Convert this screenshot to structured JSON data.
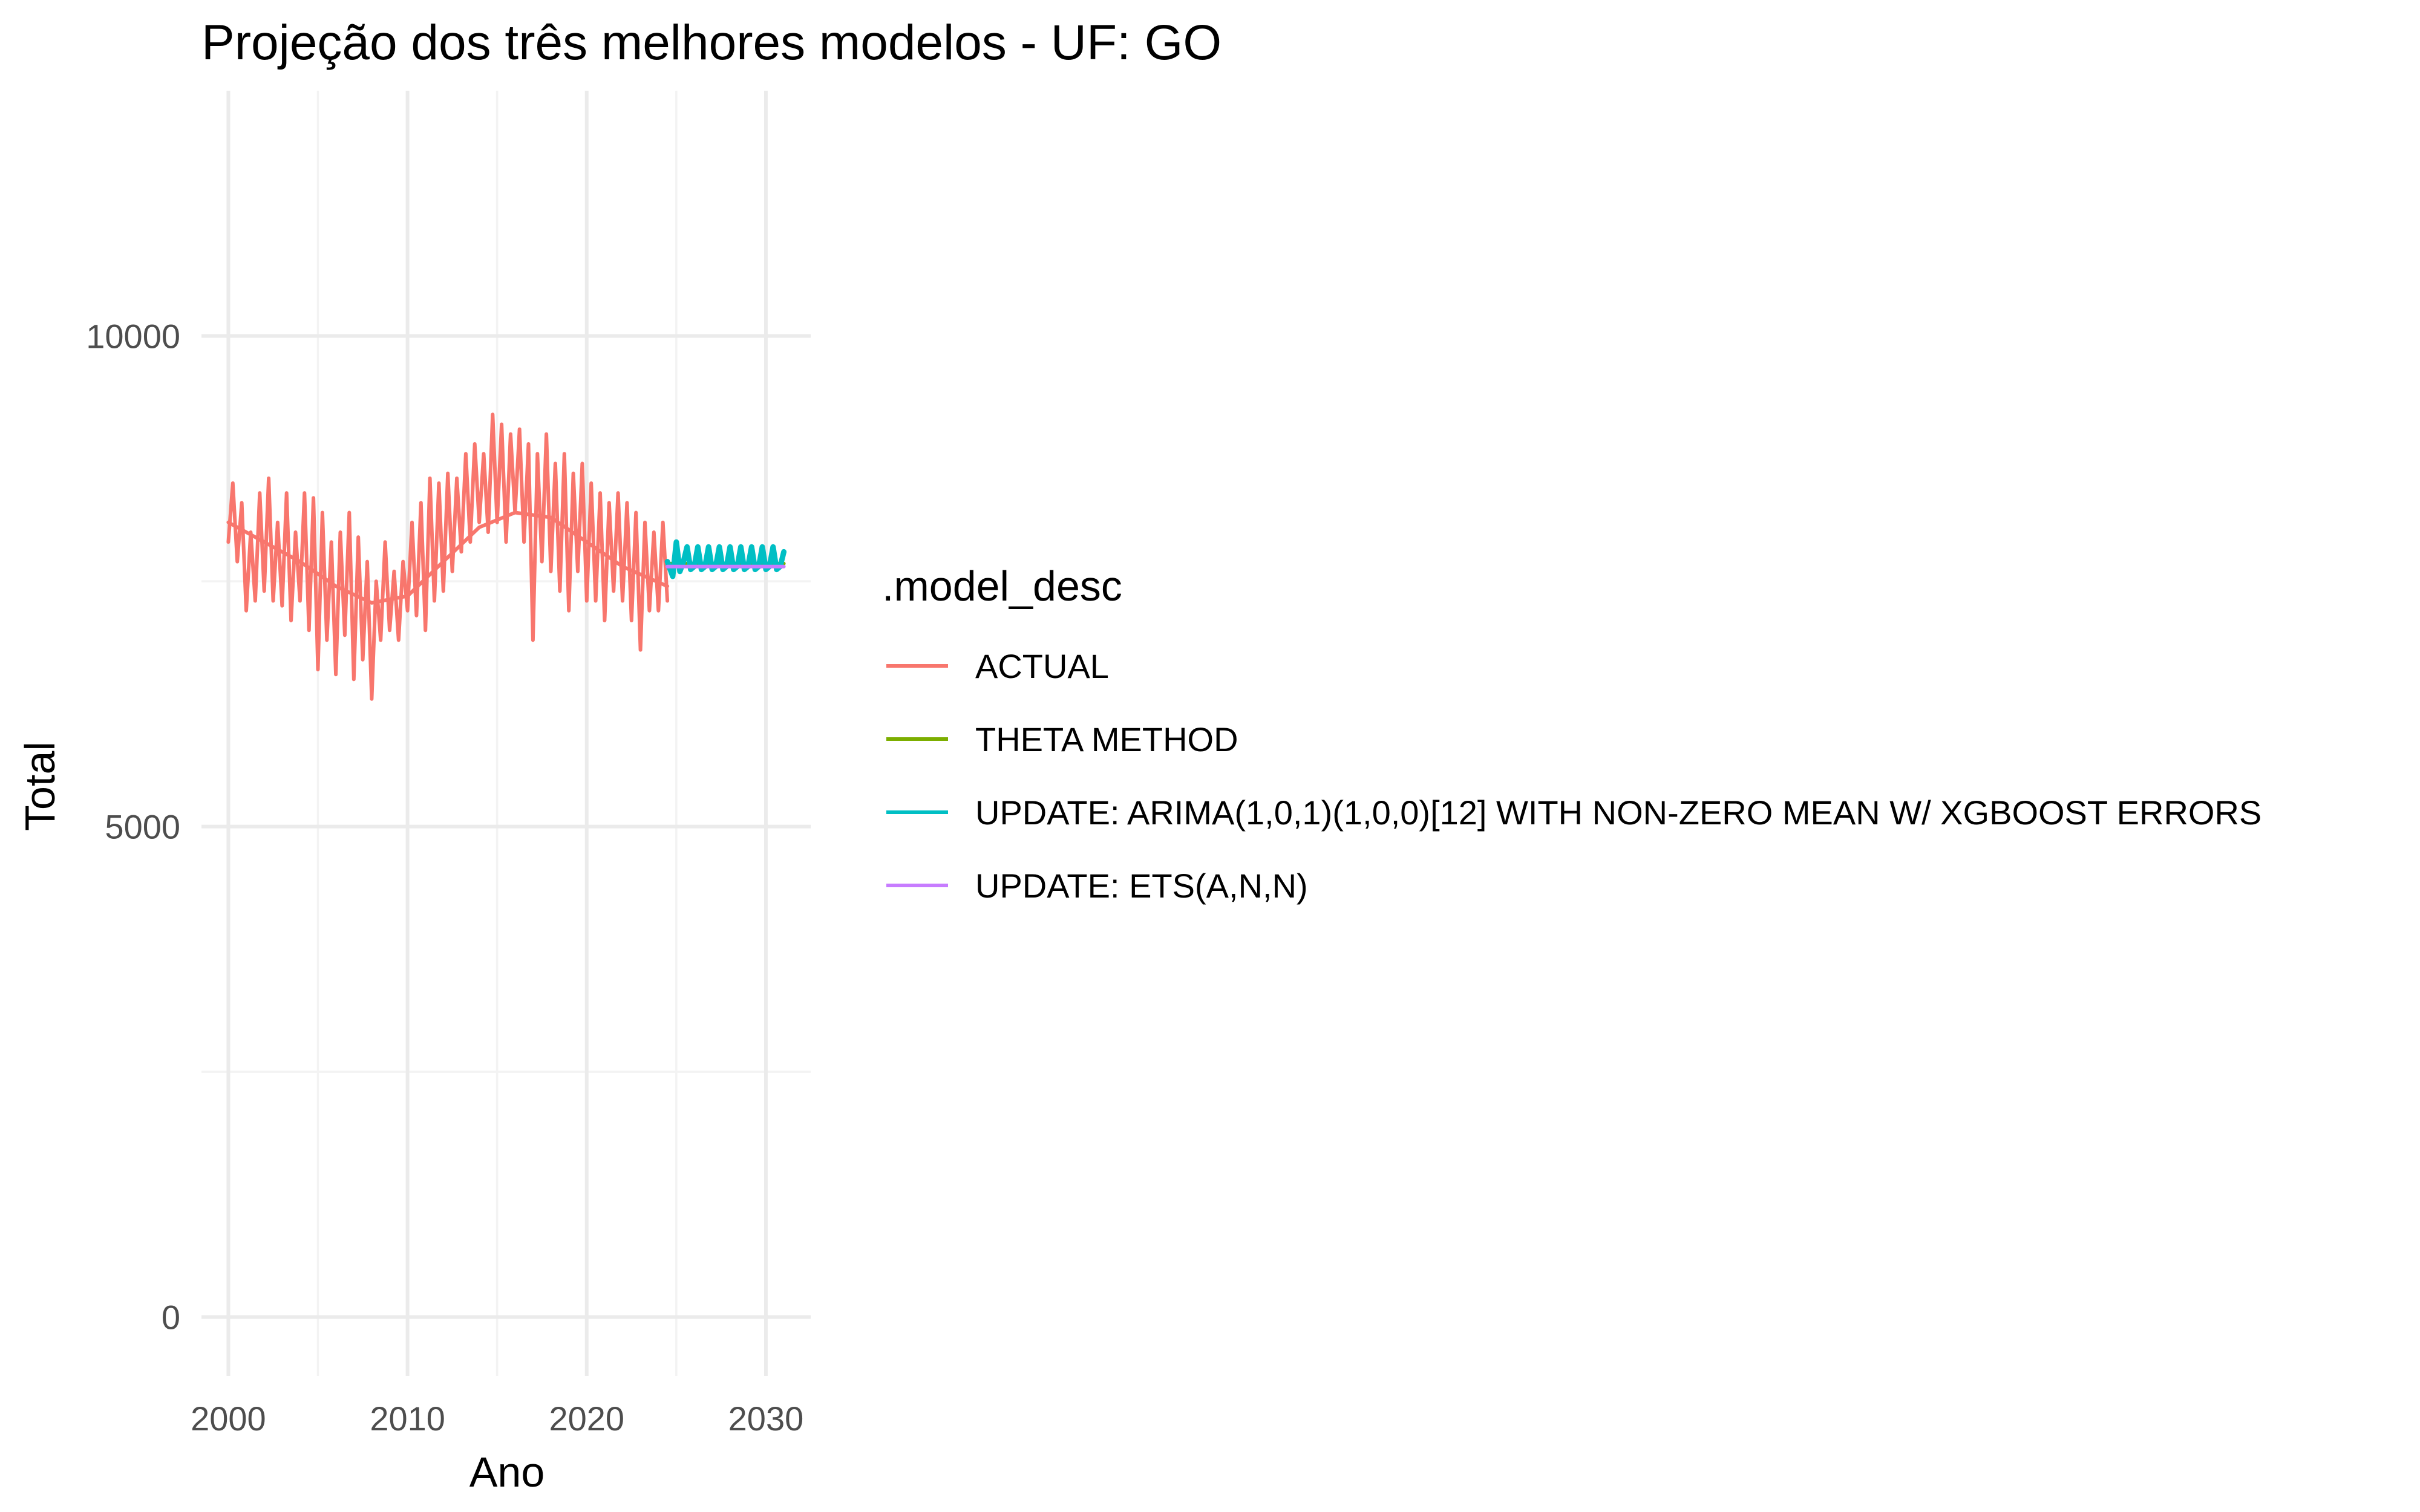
{
  "chart_data": {
    "type": "line",
    "title": "Projeção dos três melhores modelos - UF: GO",
    "xlabel": "Ano",
    "ylabel": "Total",
    "xlim": [
      1998.5,
      2032.5
    ],
    "ylim": [
      -600,
      12500
    ],
    "x_ticks": [
      2000,
      2010,
      2020,
      2030
    ],
    "x_minor_ticks": [
      2005,
      2015,
      2025
    ],
    "y_ticks": [
      0,
      5000,
      10000
    ],
    "y_minor_ticks": [
      2500,
      7500
    ],
    "grid": true,
    "legend": {
      "title": ".model_desc",
      "position": "right",
      "entries": [
        {
          "name": "ACTUAL",
          "color": "#F8766D"
        },
        {
          "name": "THETA METHOD",
          "color": "#7CAE00"
        },
        {
          "name": "UPDATE: ARIMA(1,0,1)(1,0,0)[12] WITH NON-ZERO MEAN W/ XGBOOST ERRORS",
          "color": "#00BFC4"
        },
        {
          "name": "UPDATE: ETS(A,N,N)",
          "color": "#C77CFF"
        }
      ]
    },
    "series": [
      {
        "name": "ACTUAL",
        "color": "#F8766D",
        "x": [
          2000.0,
          2000.25,
          2000.5,
          2000.75,
          2001.0,
          2001.25,
          2001.5,
          2001.75,
          2002.0,
          2002.25,
          2002.5,
          2002.75,
          2003.0,
          2003.25,
          2003.5,
          2003.75,
          2004.0,
          2004.25,
          2004.5,
          2004.75,
          2005.0,
          2005.25,
          2005.5,
          2005.75,
          2006.0,
          2006.25,
          2006.5,
          2006.75,
          2007.0,
          2007.25,
          2007.5,
          2007.75,
          2008.0,
          2008.25,
          2008.5,
          2008.75,
          2009.0,
          2009.25,
          2009.5,
          2009.75,
          2010.0,
          2010.25,
          2010.5,
          2010.75,
          2011.0,
          2011.25,
          2011.5,
          2011.75,
          2012.0,
          2012.25,
          2012.5,
          2012.75,
          2013.0,
          2013.25,
          2013.5,
          2013.75,
          2014.0,
          2014.25,
          2014.5,
          2014.75,
          2015.0,
          2015.25,
          2015.5,
          2015.75,
          2016.0,
          2016.25,
          2016.5,
          2016.75,
          2017.0,
          2017.25,
          2017.5,
          2017.75,
          2018.0,
          2018.25,
          2018.5,
          2018.75,
          2019.0,
          2019.25,
          2019.5,
          2019.75,
          2020.0,
          2020.25,
          2020.5,
          2020.75,
          2021.0,
          2021.25,
          2021.5,
          2021.75,
          2022.0,
          2022.25,
          2022.5,
          2022.75,
          2023.0,
          2023.25,
          2023.5,
          2023.75,
          2024.0,
          2024.25,
          2024.5
        ],
        "y": [
          7900,
          8500,
          7700,
          8300,
          7200,
          8000,
          7300,
          8400,
          7400,
          8550,
          7300,
          8100,
          7250,
          8400,
          7100,
          8000,
          7300,
          8400,
          7000,
          8350,
          6600,
          8200,
          6900,
          7900,
          6550,
          8000,
          6950,
          8200,
          6500,
          7950,
          6700,
          7700,
          6300,
          7500,
          6900,
          7900,
          7000,
          7600,
          6900,
          7700,
          7200,
          8100,
          7150,
          8300,
          7000,
          8550,
          7300,
          8500,
          7400,
          8600,
          7600,
          8550,
          7800,
          8800,
          7900,
          8900,
          8100,
          8800,
          8000,
          9200,
          8100,
          9100,
          7900,
          9000,
          8200,
          9050,
          7900,
          8900,
          6900,
          8800,
          7700,
          9000,
          7600,
          8700,
          7400,
          8800,
          7200,
          8600,
          7600,
          8700,
          7300,
          8500,
          7300,
          8400,
          7100,
          8300,
          7400,
          8400,
          7300,
          8300,
          7100,
          8200,
          6800,
          8100,
          7200,
          8000,
          7200,
          8100,
          7300
        ]
      },
      {
        "name": "ACTUAL",
        "color": "#F8766D",
        "x": [
          2000,
          2002,
          2004,
          2006,
          2008,
          2010,
          2012,
          2014,
          2016,
          2018,
          2020,
          2022,
          2024.5
        ],
        "y": [
          8100,
          7900,
          7700,
          7450,
          7280,
          7350,
          7700,
          8050,
          8200,
          8150,
          7900,
          7650,
          7450
        ]
      },
      {
        "name": "THETA METHOD",
        "color": "#7CAE00",
        "x": [
          2024.5,
          2031
        ],
        "y": [
          7680,
          7680
        ]
      },
      {
        "name": "UPDATE: ARIMA(1,0,1)(1,0,0)[12] WITH NON-ZERO MEAN W/ XGBOOST ERRORS",
        "color": "#00BFC4",
        "x": [
          2024.5,
          2024.8,
          2025.0,
          2025.2,
          2025.4,
          2025.6,
          2025.8,
          2026.0,
          2026.2,
          2026.4,
          2026.6,
          2026.8,
          2027.0,
          2027.2,
          2027.4,
          2027.6,
          2027.8,
          2028.0,
          2028.2,
          2028.4,
          2028.6,
          2028.8,
          2029.0,
          2029.2,
          2029.4,
          2029.6,
          2029.8,
          2030.0,
          2030.2,
          2030.4,
          2030.6,
          2030.8,
          2031.0
        ],
        "y": [
          7700,
          7550,
          7900,
          7600,
          7700,
          7850,
          7620,
          7650,
          7850,
          7620,
          7650,
          7850,
          7620,
          7650,
          7850,
          7620,
          7650,
          7850,
          7620,
          7650,
          7850,
          7620,
          7650,
          7850,
          7620,
          7650,
          7850,
          7620,
          7650,
          7850,
          7620,
          7650,
          7800
        ]
      },
      {
        "name": "UPDATE: ETS(A,N,N)",
        "color": "#C77CFF",
        "x": [
          2024.5,
          2031
        ],
        "y": [
          7650,
          7650
        ]
      }
    ]
  }
}
